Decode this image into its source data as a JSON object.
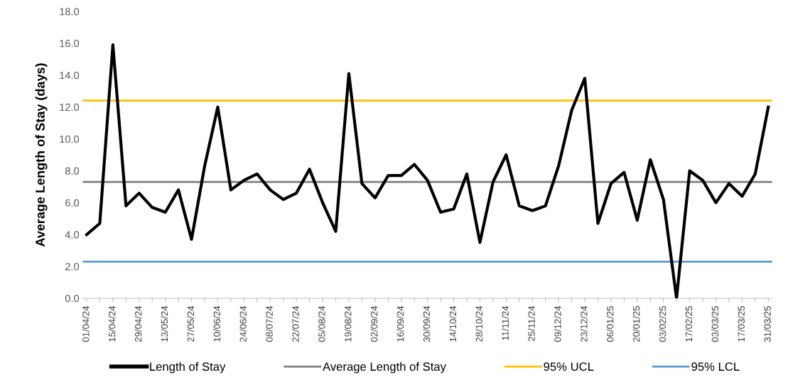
{
  "chart_data": {
    "type": "line",
    "ylabel": "Average Length of Stay (days)",
    "categories": [
      "01/04/24",
      null,
      "15/04/24",
      null,
      "29/04/24",
      null,
      "13/05/24",
      null,
      "27/05/24",
      null,
      "10/06/24",
      null,
      "24/06/24",
      null,
      "08/07/24",
      null,
      "22/07/24",
      null,
      "05/08/24",
      null,
      "19/08/24",
      null,
      "02/09/24",
      null,
      "16/09/24",
      null,
      "30/09/24",
      null,
      "14/10/24",
      null,
      "28/10/24",
      null,
      "11/11/24",
      null,
      "25/11/24",
      null,
      "09/12/24",
      null,
      "23/12/24",
      null,
      "06/01/25",
      null,
      "20/01/25",
      null,
      "03/02/25",
      null,
      "17/02/25",
      null,
      "03/03/25",
      null,
      "17/03/25",
      null,
      "31/03/25"
    ],
    "series": [
      {
        "name": "Length of Stay",
        "color": "#000000",
        "values": [
          4.0,
          4.7,
          15.9,
          5.8,
          6.6,
          5.7,
          5.4,
          6.8,
          3.7,
          8.3,
          12.0,
          6.8,
          7.4,
          7.8,
          6.8,
          6.2,
          6.6,
          8.1,
          6.0,
          4.2,
          14.1,
          7.2,
          6.3,
          7.7,
          7.7,
          8.4,
          7.4,
          5.4,
          5.6,
          7.8,
          3.5,
          7.3,
          9.0,
          5.8,
          5.5,
          5.8,
          8.3,
          11.8,
          13.8,
          4.7,
          7.2,
          7.9,
          4.9,
          8.7,
          6.2,
          0.0,
          8.0,
          7.4,
          6.0,
          7.2,
          6.4,
          7.8,
          12.0
        ]
      }
    ],
    "ref_lines": [
      {
        "axis": "y",
        "value": 7.3,
        "label": "Average Length of Stay",
        "color": "#7f7f7f"
      },
      {
        "axis": "y",
        "value": 12.4,
        "label": "95% UCL",
        "color": "#ffc000"
      },
      {
        "axis": "y",
        "value": 2.3,
        "label": "95% LCL",
        "color": "#5b9bd5"
      }
    ],
    "ylim": [
      0,
      18
    ],
    "yticks": [
      {
        "value": 0,
        "label": "0.0"
      },
      {
        "value": 2,
        "label": "2.0"
      },
      {
        "value": 4,
        "label": "4.0"
      },
      {
        "value": 6,
        "label": "6.0"
      },
      {
        "value": 8,
        "label": "8.0"
      },
      {
        "value": 10,
        "label": "10.0"
      },
      {
        "value": 12,
        "label": "12.0"
      },
      {
        "value": 14,
        "label": "14.0"
      },
      {
        "value": 16,
        "label": "16.0"
      },
      {
        "value": 18,
        "label": "18.0"
      }
    ],
    "grid": false,
    "legend": "bottom",
    "marker": "none",
    "line_style": "solid"
  }
}
